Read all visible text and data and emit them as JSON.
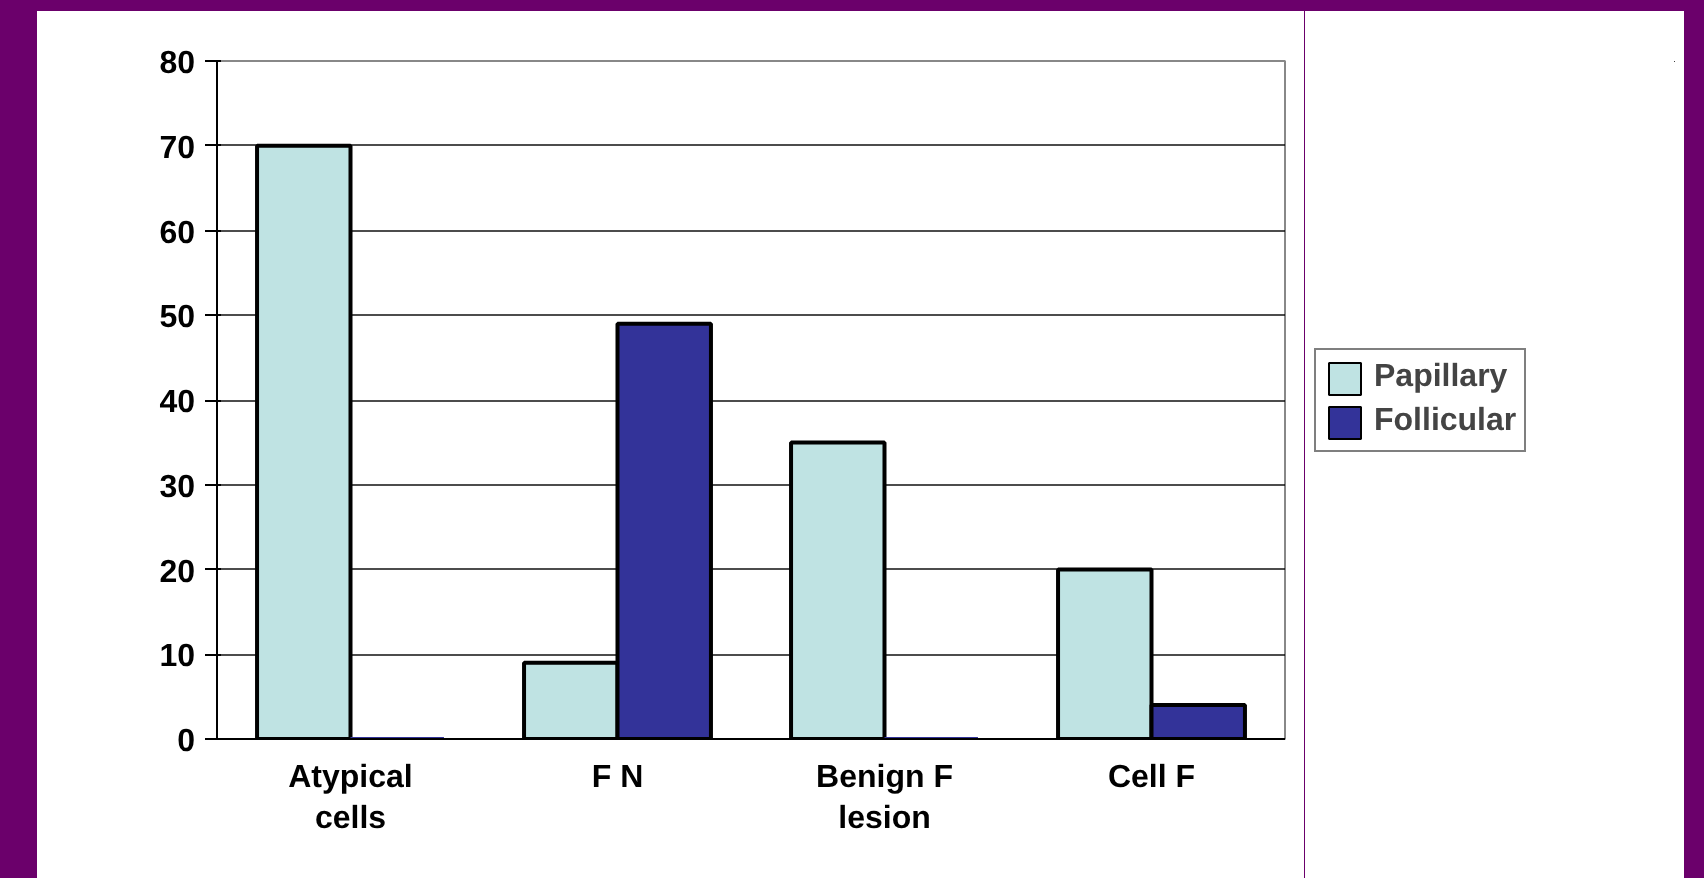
{
  "chart_data": {
    "type": "bar",
    "categories": [
      "Atypical cells",
      "F N",
      "Benign F lesion",
      "Cell F"
    ],
    "series": [
      {
        "name": "Papillary",
        "color": "#bfe3e3",
        "values": [
          70,
          9,
          35,
          20
        ]
      },
      {
        "name": "Follicular",
        "color": "#333399",
        "values": [
          0,
          49,
          0,
          4
        ]
      }
    ],
    "ylim": [
      0,
      80
    ],
    "yticks": [
      0,
      10,
      20,
      30,
      40,
      50,
      60,
      70,
      80
    ],
    "grid": "y",
    "legend": "right"
  }
}
